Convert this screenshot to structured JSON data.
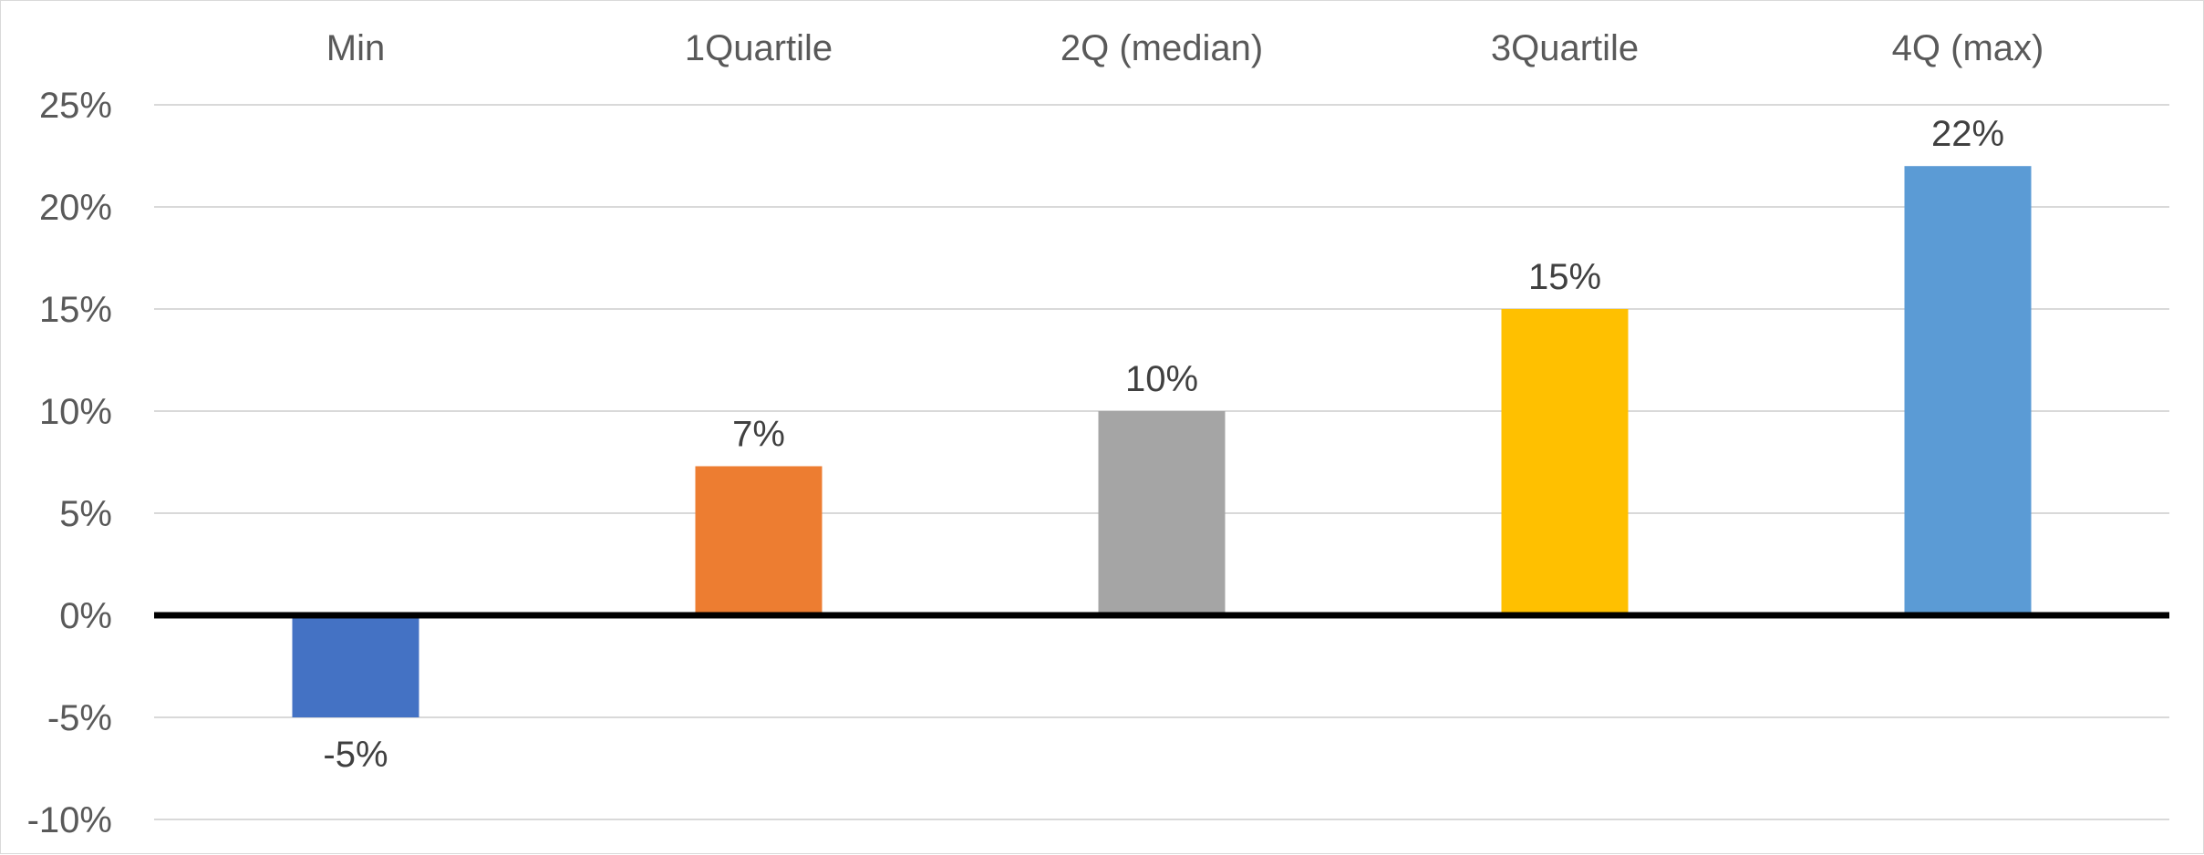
{
  "chart_data": {
    "type": "bar",
    "title": "",
    "xlabel": "",
    "ylabel": "",
    "categories": [
      "Min",
      "1Quartile",
      "2Q (median)",
      "3Quartile",
      "4Q (max)"
    ],
    "values": [
      -5,
      7.3,
      10,
      15,
      22
    ],
    "data_labels": [
      "-5%",
      "7%",
      "10%",
      "15%",
      "22%"
    ],
    "colors": [
      "#4472C4",
      "#ED7D31",
      "#A5A5A5",
      "#FFC000",
      "#5B9BD5"
    ],
    "ylim": [
      -10,
      25
    ],
    "y_ticks": [
      25,
      20,
      15,
      10,
      5,
      0,
      -5,
      -10
    ],
    "y_tick_labels": [
      "25%",
      "20%",
      "15%",
      "10%",
      "5%",
      "0%",
      "-5%",
      "-10%"
    ],
    "category_label_position": "top",
    "grid": true,
    "zero_line": "thick black",
    "legend": "none"
  }
}
